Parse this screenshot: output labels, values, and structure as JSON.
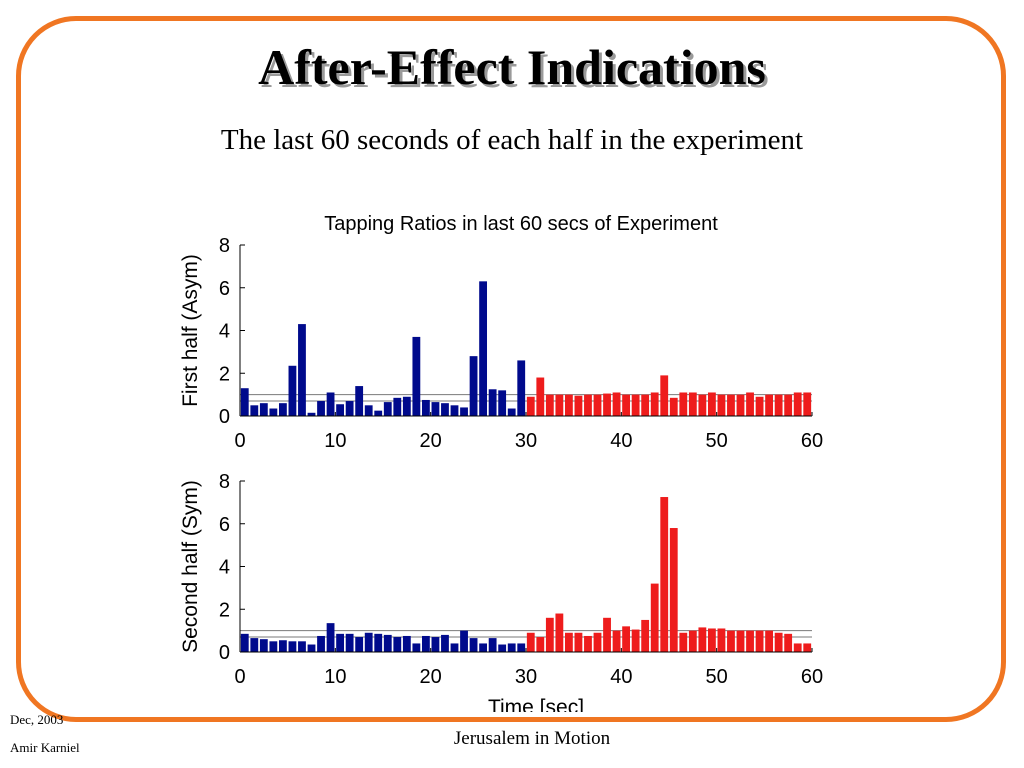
{
  "slide": {
    "title": "After-Effect Indications",
    "subtitle": "The last 60 seconds of each half in the experiment",
    "footer_date": "Dec, 2003",
    "footer_author": "Amir Karniel",
    "footer_center": "Jerusalem in Motion",
    "frame_color": "#f07622"
  },
  "chart_data": [
    {
      "type": "bar",
      "title": "Tapping Ratios in last 60 secs of Experiment",
      "ylabel": "First half (Asym)",
      "xlabel": "",
      "xlim": [
        0,
        60
      ],
      "ylim": [
        0,
        8
      ],
      "xticks": [
        0,
        10,
        20,
        30,
        40,
        50,
        60
      ],
      "yticks": [
        0,
        2,
        4,
        6,
        8
      ],
      "reference_lines": [
        0.7,
        1.0
      ],
      "colors": {
        "first_30": "#000a8c",
        "last_30": "#ee1c1c"
      },
      "x": [
        1,
        2,
        3,
        4,
        5,
        6,
        7,
        8,
        9,
        10,
        11,
        12,
        13,
        14,
        15,
        16,
        17,
        18,
        19,
        20,
        21,
        22,
        23,
        24,
        25,
        26,
        27,
        28,
        29,
        30,
        31,
        32,
        33,
        34,
        35,
        36,
        37,
        38,
        39,
        40,
        41,
        42,
        43,
        44,
        45,
        46,
        47,
        48,
        49,
        50,
        51,
        52,
        53,
        54,
        55,
        56,
        57,
        58,
        59,
        60
      ],
      "values": [
        1.3,
        0.5,
        0.6,
        0.35,
        0.6,
        2.35,
        4.3,
        0.15,
        0.7,
        1.1,
        0.55,
        0.7,
        1.4,
        0.5,
        0.25,
        0.65,
        0.85,
        0.9,
        3.7,
        0.75,
        0.65,
        0.6,
        0.5,
        0.4,
        2.8,
        6.3,
        1.25,
        1.2,
        0.35,
        2.6,
        0.9,
        1.8,
        1.0,
        1.0,
        1.0,
        0.95,
        1.0,
        1.0,
        1.05,
        1.1,
        1.0,
        1.0,
        1.0,
        1.1,
        1.9,
        0.85,
        1.1,
        1.1,
        1.0,
        1.1,
        1.0,
        1.0,
        1.0,
        1.1,
        0.9,
        1.0,
        1.0,
        1.0,
        1.1,
        1.1
      ]
    },
    {
      "type": "bar",
      "title": "",
      "ylabel": "Second half (Sym)",
      "xlabel": "Time [sec]",
      "xlim": [
        0,
        60
      ],
      "ylim": [
        0,
        8
      ],
      "xticks": [
        0,
        10,
        20,
        30,
        40,
        50,
        60
      ],
      "yticks": [
        0,
        2,
        4,
        6,
        8
      ],
      "reference_lines": [
        0.7,
        1.0
      ],
      "colors": {
        "first_30": "#000a8c",
        "last_30": "#ee1c1c"
      },
      "x": [
        1,
        2,
        3,
        4,
        5,
        6,
        7,
        8,
        9,
        10,
        11,
        12,
        13,
        14,
        15,
        16,
        17,
        18,
        19,
        20,
        21,
        22,
        23,
        24,
        25,
        26,
        27,
        28,
        29,
        30,
        31,
        32,
        33,
        34,
        35,
        36,
        37,
        38,
        39,
        40,
        41,
        42,
        43,
        44,
        45,
        46,
        47,
        48,
        49,
        50,
        51,
        52,
        53,
        54,
        55,
        56,
        57,
        58,
        59,
        60
      ],
      "values": [
        0.85,
        0.65,
        0.6,
        0.5,
        0.55,
        0.5,
        0.5,
        0.35,
        0.75,
        1.35,
        0.85,
        0.85,
        0.7,
        0.9,
        0.85,
        0.8,
        0.7,
        0.75,
        0.4,
        0.75,
        0.7,
        0.8,
        0.4,
        1.0,
        0.65,
        0.4,
        0.65,
        0.35,
        0.4,
        0.4,
        0.9,
        0.7,
        1.6,
        1.8,
        0.9,
        0.9,
        0.75,
        0.9,
        1.6,
        1.0,
        1.2,
        1.05,
        1.5,
        3.2,
        7.25,
        5.8,
        0.9,
        1.0,
        1.15,
        1.1,
        1.1,
        1.0,
        1.0,
        1.0,
        1.0,
        1.0,
        0.9,
        0.85,
        0.4,
        0.4
      ]
    }
  ]
}
